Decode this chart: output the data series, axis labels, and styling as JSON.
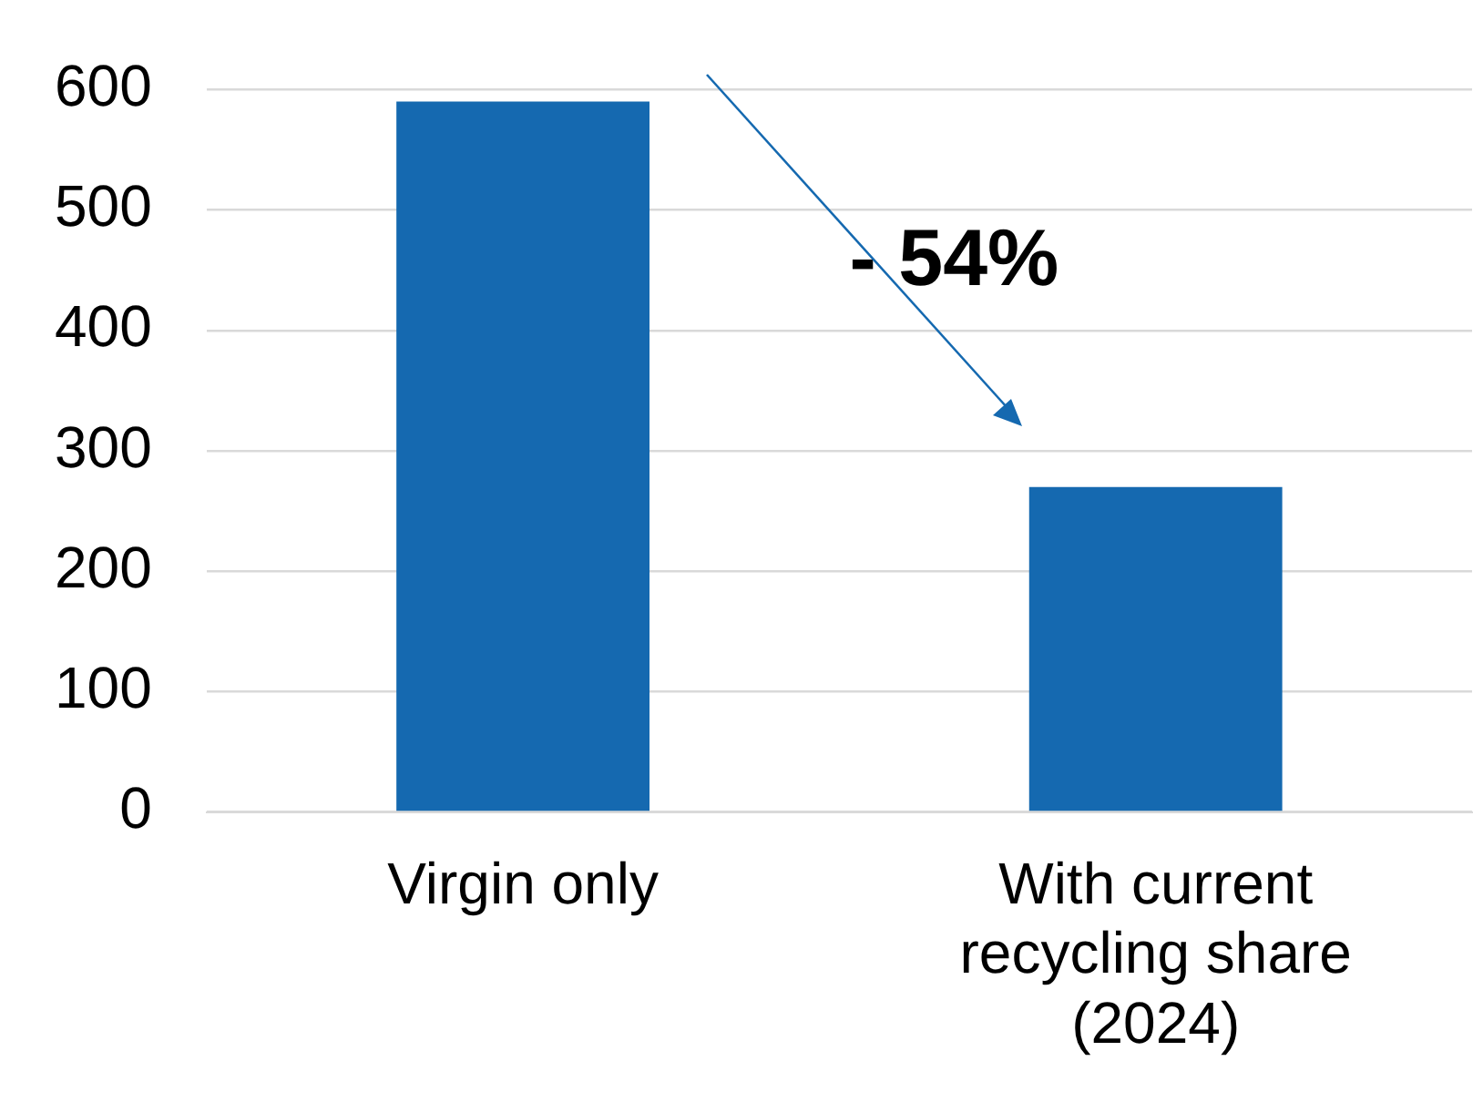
{
  "chart_data": {
    "type": "bar",
    "categories": [
      "Virgin only",
      "With current recycling share (2024)"
    ],
    "values": [
      590,
      270
    ],
    "color": "#1569b0",
    "ylim": [
      0,
      600
    ],
    "yticks": [
      0,
      100,
      200,
      300,
      400,
      500,
      600
    ],
    "grid": "y",
    "annotations": [
      "- 54%"
    ]
  }
}
